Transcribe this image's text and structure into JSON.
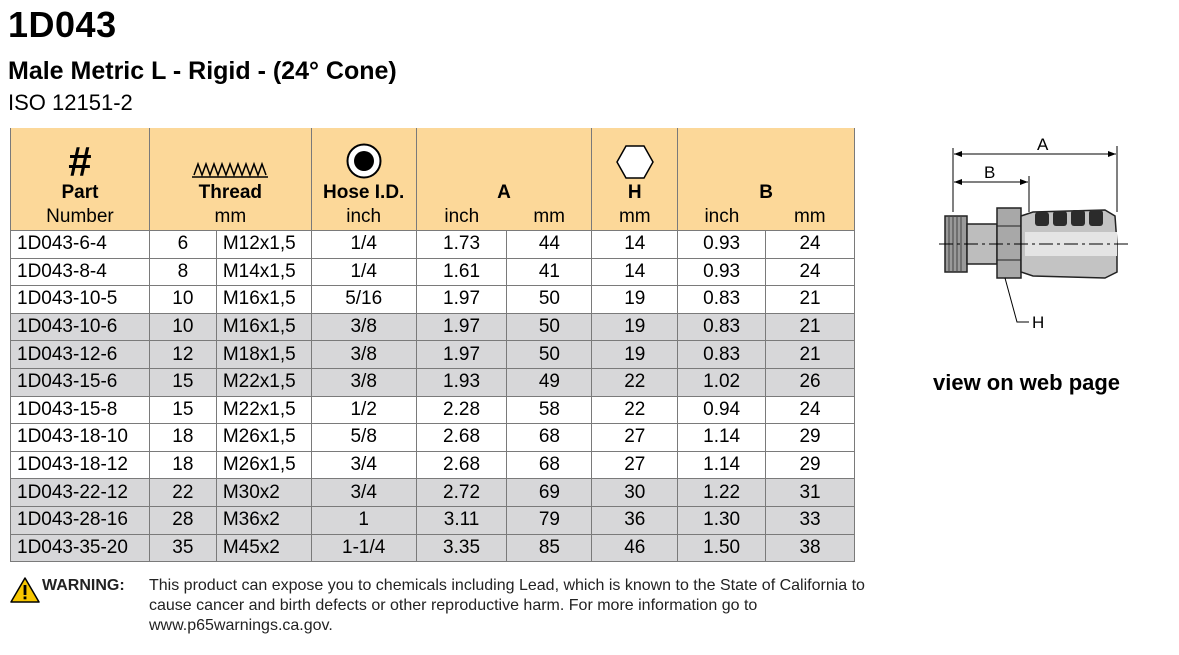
{
  "header": {
    "title": "1D043",
    "subtitle": "Male Metric L - Rigid - (24° Cone)",
    "standard": "ISO 12151-2"
  },
  "table": {
    "headers": {
      "hash": "#",
      "part_line1": "Part",
      "part_line2": "Number",
      "thread": "Thread",
      "thread_unit": "mm",
      "hose_id": "Hose I.D.",
      "hose_unit": "inch",
      "a": "A",
      "a_inch": "inch",
      "a_mm": "mm",
      "h": "H",
      "h_unit": "mm",
      "b": "B",
      "b_inch": "inch",
      "b_mm": "mm"
    },
    "rows": [
      {
        "part": "1D043-6-4",
        "dash": "6",
        "thread": "M12x1,5",
        "hose": "1/4",
        "a_in": "1.73",
        "a_mm": "44",
        "h": "14",
        "b_in": "0.93",
        "b_mm": "24",
        "shaded": false
      },
      {
        "part": "1D043-8-4",
        "dash": "8",
        "thread": "M14x1,5",
        "hose": "1/4",
        "a_in": "1.61",
        "a_mm": "41",
        "h": "14",
        "b_in": "0.93",
        "b_mm": "24",
        "shaded": false
      },
      {
        "part": "1D043-10-5",
        "dash": "10",
        "thread": "M16x1,5",
        "hose": "5/16",
        "a_in": "1.97",
        "a_mm": "50",
        "h": "19",
        "b_in": "0.83",
        "b_mm": "21",
        "shaded": false
      },
      {
        "part": "1D043-10-6",
        "dash": "10",
        "thread": "M16x1,5",
        "hose": "3/8",
        "a_in": "1.97",
        "a_mm": "50",
        "h": "19",
        "b_in": "0.83",
        "b_mm": "21",
        "shaded": true
      },
      {
        "part": "1D043-12-6",
        "dash": "12",
        "thread": "M18x1,5",
        "hose": "3/8",
        "a_in": "1.97",
        "a_mm": "50",
        "h": "19",
        "b_in": "0.83",
        "b_mm": "21",
        "shaded": true
      },
      {
        "part": "1D043-15-6",
        "dash": "15",
        "thread": "M22x1,5",
        "hose": "3/8",
        "a_in": "1.93",
        "a_mm": "49",
        "h": "22",
        "b_in": "1.02",
        "b_mm": "26",
        "shaded": true
      },
      {
        "part": "1D043-15-8",
        "dash": "15",
        "thread": "M22x1,5",
        "hose": "1/2",
        "a_in": "2.28",
        "a_mm": "58",
        "h": "22",
        "b_in": "0.94",
        "b_mm": "24",
        "shaded": false
      },
      {
        "part": "1D043-18-10",
        "dash": "18",
        "thread": "M26x1,5",
        "hose": "5/8",
        "a_in": "2.68",
        "a_mm": "68",
        "h": "27",
        "b_in": "1.14",
        "b_mm": "29",
        "shaded": false
      },
      {
        "part": "1D043-18-12",
        "dash": "18",
        "thread": "M26x1,5",
        "hose": "3/4",
        "a_in": "2.68",
        "a_mm": "68",
        "h": "27",
        "b_in": "1.14",
        "b_mm": "29",
        "shaded": false
      },
      {
        "part": "1D043-22-12",
        "dash": "22",
        "thread": "M30x2",
        "hose": "3/4",
        "a_in": "2.72",
        "a_mm": "69",
        "h": "30",
        "b_in": "1.22",
        "b_mm": "31",
        "shaded": true
      },
      {
        "part": "1D043-28-16",
        "dash": "28",
        "thread": "M36x2",
        "hose": "1",
        "a_in": "3.11",
        "a_mm": "79",
        "h": "36",
        "b_in": "1.30",
        "b_mm": "33",
        "shaded": true
      },
      {
        "part": "1D043-35-20",
        "dash": "35",
        "thread": "M45x2",
        "hose": "1-1/4",
        "a_in": "3.35",
        "a_mm": "85",
        "h": "46",
        "b_in": "1.50",
        "b_mm": "38",
        "shaded": true
      }
    ]
  },
  "diagram": {
    "label_a": "A",
    "label_b": "B",
    "label_h": "H"
  },
  "link": {
    "view_on_web": "view on web page"
  },
  "warning": {
    "label": "WARNING:",
    "text": "This product can expose you to chemicals including Lead, which is known to the State of California to cause cancer and birth defects or other reproductive harm.  For more information go to www.p65warnings.ca.gov."
  },
  "colors": {
    "header_bg": "#fcd899",
    "shaded_row": "#d7d7d9",
    "warning_yellow": "#f7c600"
  },
  "icons": [
    "thread-icon",
    "hose-id-icon",
    "hex-icon",
    "warning-icon"
  ]
}
